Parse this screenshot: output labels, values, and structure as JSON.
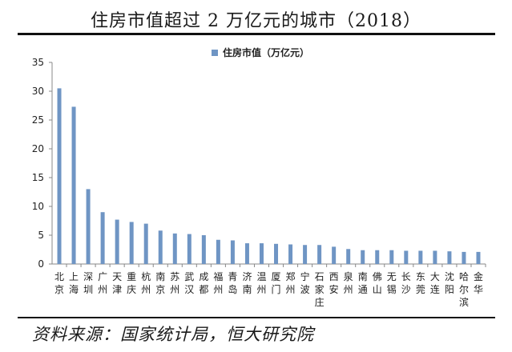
{
  "title": "住房市值超过 2 万亿元的城市（2018）",
  "source": "资料来源：国家统计局，恒大研究院",
  "chart_data": {
    "type": "bar",
    "legend": "住房市值（万亿元）",
    "legend_position": "top-center",
    "grid": false,
    "ylim": [
      0,
      35
    ],
    "yticks": [
      0,
      5,
      10,
      15,
      20,
      25,
      30,
      35
    ],
    "categories": [
      "北京",
      "上海",
      "深圳",
      "广州",
      "天津",
      "重庆",
      "杭州",
      "南京",
      "苏州",
      "武汉",
      "成都",
      "福州",
      "青岛",
      "济南",
      "温州",
      "厦门",
      "郑州",
      "宁波",
      "石家庄",
      "西安",
      "泉州",
      "南通",
      "佛山",
      "无锡",
      "长沙",
      "东莞",
      "大连",
      "沈阳",
      "哈尔滨",
      "金华"
    ],
    "series": [
      {
        "name": "住房市值（万亿元）",
        "color": "#6f95c4",
        "values": [
          30.5,
          27.3,
          13.0,
          9.0,
          7.7,
          7.3,
          7.0,
          5.8,
          5.3,
          5.2,
          5.0,
          4.2,
          4.1,
          3.6,
          3.6,
          3.5,
          3.4,
          3.3,
          3.3,
          3.0,
          2.6,
          2.4,
          2.4,
          2.4,
          2.3,
          2.3,
          2.3,
          2.2,
          2.1,
          2.1
        ]
      }
    ]
  }
}
